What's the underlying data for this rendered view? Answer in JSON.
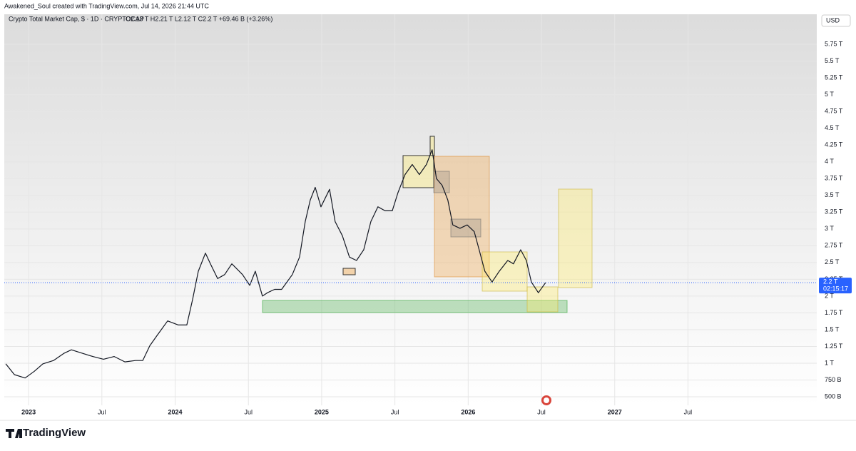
{
  "header": {
    "author_line": "Awakened_Soul created with TradingView.com, Jul 14, 2026 21:44 UTC"
  },
  "chart_data": {
    "type": "line",
    "title": "Crypto Total Market Cap, $ · 1D · CRYPTOCAP",
    "ohlc": "O2.13 T H2.21 T L2.12 T C2.2 T +69.46 B (+3.26%)",
    "currency": "USD",
    "color": "#131722",
    "grid": true,
    "x": [
      2022.844,
      2022.903,
      2022.976,
      2023.039,
      2023.097,
      2023.17,
      2023.243,
      2023.292,
      2023.365,
      2023.438,
      2023.511,
      2023.584,
      2023.657,
      2023.73,
      2023.779,
      2023.827,
      2023.876,
      2023.949,
      2024.022,
      2024.08,
      2024.119,
      2024.158,
      2024.207,
      2024.241,
      2024.29,
      2024.338,
      2024.387,
      2024.46,
      2024.509,
      2024.547,
      2024.596,
      2024.63,
      2024.679,
      2024.727,
      2024.8,
      2024.849,
      2024.888,
      2024.922,
      2024.956,
      2024.995,
      2025.054,
      2025.092,
      2025.141,
      2025.19,
      2025.238,
      2025.287,
      2025.336,
      2025.384,
      2025.433,
      2025.482,
      2025.521,
      2025.569,
      2025.618,
      2025.667,
      2025.715,
      2025.754,
      2025.783,
      2025.822,
      2025.861,
      2025.895,
      2025.944,
      2025.993,
      2026.041,
      2026.075,
      2026.114,
      2026.163,
      2026.212,
      2026.27,
      2026.309,
      2026.358,
      2026.397,
      2026.431,
      2026.479,
      2026.528
    ],
    "values": [
      0.99,
      0.83,
      0.78,
      0.88,
      0.99,
      1.04,
      1.15,
      1.2,
      1.15,
      1.1,
      1.06,
      1.1,
      1.02,
      1.04,
      1.04,
      1.26,
      1.41,
      1.63,
      1.57,
      1.57,
      1.95,
      2.37,
      2.64,
      2.48,
      2.26,
      2.32,
      2.48,
      2.32,
      2.16,
      2.37,
      2.0,
      2.05,
      2.1,
      2.1,
      2.32,
      2.58,
      3.11,
      3.43,
      3.62,
      3.33,
      3.59,
      3.11,
      2.9,
      2.58,
      2.53,
      2.69,
      3.11,
      3.33,
      3.27,
      3.27,
      3.54,
      3.81,
      3.96,
      3.81,
      3.96,
      4.18,
      3.75,
      3.65,
      3.43,
      3.06,
      3.01,
      3.06,
      2.96,
      2.69,
      2.37,
      2.21,
      2.37,
      2.53,
      2.48,
      2.69,
      2.53,
      2.21,
      2.05,
      2.2
    ],
    "xlim": [
      2022.834,
      2028.379
    ],
    "xticks": [
      {
        "value": 2023,
        "label": "2023"
      },
      {
        "value": 2023.5,
        "label": "Jul"
      },
      {
        "value": 2024,
        "label": "2024"
      },
      {
        "value": 2024.5,
        "label": "Jul"
      },
      {
        "value": 2025,
        "label": "2025"
      },
      {
        "value": 2025.5,
        "label": "Jul"
      },
      {
        "value": 2026,
        "label": "2026"
      },
      {
        "value": 2026.5,
        "label": "Jul"
      },
      {
        "value": 2027,
        "label": "2027"
      },
      {
        "value": 2027.5,
        "label": "Jul"
      }
    ],
    "ylim": [
      0.373,
      6.197
    ],
    "yticks": [
      {
        "value": 0.5,
        "label": "500 B"
      },
      {
        "value": 0.75,
        "label": "750 B"
      },
      {
        "value": 1,
        "label": "1 T"
      },
      {
        "value": 1.25,
        "label": "1.25 T"
      },
      {
        "value": 1.5,
        "label": "1.5 T"
      },
      {
        "value": 1.75,
        "label": "1.75 T"
      },
      {
        "value": 2,
        "label": "2 T"
      },
      {
        "value": 2.25,
        "label": "2.25 T"
      },
      {
        "value": 2.5,
        "label": "2.5 T"
      },
      {
        "value": 2.75,
        "label": "2.75 T"
      },
      {
        "value": 3,
        "label": "3 T"
      },
      {
        "value": 3.25,
        "label": "3.25 T"
      },
      {
        "value": 3.5,
        "label": "3.5 T"
      },
      {
        "value": 3.75,
        "label": "3.75 T"
      },
      {
        "value": 4,
        "label": "4 T"
      },
      {
        "value": 4.25,
        "label": "4.25 T"
      },
      {
        "value": 4.5,
        "label": "4.5 T"
      },
      {
        "value": 4.75,
        "label": "4.75 T"
      },
      {
        "value": 5,
        "label": "5 T"
      },
      {
        "value": 5.25,
        "label": "5.25 T"
      },
      {
        "value": 5.5,
        "label": "5.5 T"
      },
      {
        "value": 5.75,
        "label": "5.75 T"
      }
    ],
    "last_price": {
      "value": 2.2,
      "label": "2.2 T"
    },
    "countdown": "02:15:17"
  },
  "footer": {
    "brand": "TradingView"
  }
}
